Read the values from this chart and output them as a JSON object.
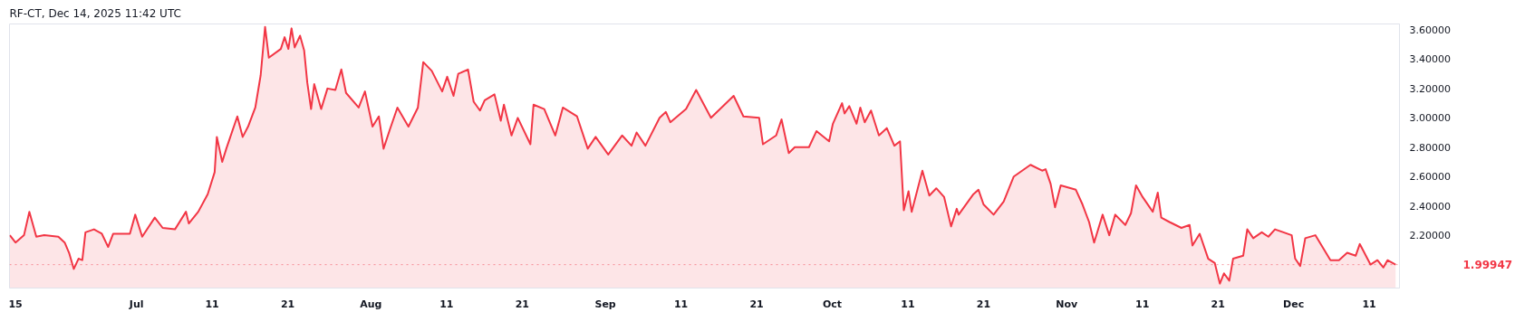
{
  "chart_data": {
    "type": "area",
    "title": "RF-CT, Dec 14, 2025 11:42 UTC",
    "x": [
      "2025-06-14T06:00",
      "2025-06-15T00:00",
      "2025-06-16T03:00",
      "2025-06-16T20:00",
      "2025-06-17T18:00",
      "2025-06-18T19:00",
      "2025-06-20T16:00",
      "2025-06-21T12:00",
      "2025-06-22T02:00",
      "2025-06-22T17:00",
      "2025-06-23T08:00",
      "2025-06-23T20:00",
      "2025-06-24T06:00",
      "2025-06-25T09:00",
      "2025-06-26T10:00",
      "2025-06-27T06:00",
      "2025-06-27T22:00",
      "2025-06-30T03:00",
      "2025-06-30T20:00",
      "2025-07-01T18:00",
      "2025-07-03T10:00",
      "2025-07-04T11:00",
      "2025-07-06T02:00",
      "2025-07-07T13:00",
      "2025-07-07T22:00",
      "2025-07-09T04:00",
      "2025-07-10T10:00",
      "2025-07-11T08:00",
      "2025-07-11T15:00",
      "2025-07-12T08:00",
      "2025-07-12T21:00",
      "2025-07-14T08:00",
      "2025-07-15T01:00",
      "2025-07-15T18:00",
      "2025-07-16T17:00",
      "2025-07-17T10:00",
      "2025-07-18T00:00",
      "2025-07-18T12:00",
      "2025-07-20T02:00",
      "2025-07-20T14:00",
      "2025-07-21T02:00",
      "2025-07-21T12:00",
      "2025-07-21T22:00",
      "2025-07-22T15:00",
      "2025-07-23T04:00",
      "2025-07-23T14:00",
      "2025-07-24T02:00",
      "2025-07-24T12:00",
      "2025-07-25T10:00",
      "2025-07-26T06:00",
      "2025-07-27T07:00",
      "2025-07-28T02:00",
      "2025-07-28T17:00",
      "2025-07-30T09:00",
      "2025-07-31T05:00",
      "2025-08-01T05:00",
      "2025-08-02T01:00",
      "2025-08-02T16:00",
      "2025-08-03T12:00",
      "2025-08-04T12:00",
      "2025-08-05T23:00",
      "2025-08-07T05:00",
      "2025-08-07T22:00",
      "2025-08-09T01:00",
      "2025-08-10T10:00",
      "2025-08-11T02:00",
      "2025-08-11T22:00",
      "2025-08-12T13:00",
      "2025-08-13T20:00",
      "2025-08-14T14:00",
      "2025-08-15T10:00",
      "2025-08-16T01:00",
      "2025-08-17T08:00",
      "2025-08-18T04:00",
      "2025-08-18T14:00",
      "2025-08-19T14:00",
      "2025-08-20T10:00",
      "2025-08-22T02:00",
      "2025-08-22T12:00",
      "2025-08-23T22:00",
      "2025-08-25T09:00",
      "2025-08-26T09:00",
      "2025-08-28T06:00",
      "2025-08-29T16:00",
      "2025-08-30T17:00",
      "2025-09-01T09:00",
      "2025-09-03T05:00",
      "2025-09-04T11:00",
      "2025-09-05T03:00",
      "2025-09-06T07:00",
      "2025-09-08T04:00",
      "2025-09-09T00:00",
      "2025-09-09T14:00",
      "2025-09-11T16:00",
      "2025-09-13T00:00",
      "2025-09-14T23:00",
      "2025-09-16T04:00",
      "2025-09-17T23:00",
      "2025-09-19T06:00",
      "2025-09-21T08:00",
      "2025-09-21T20:00",
      "2025-09-23T14:00",
      "2025-09-24T07:00",
      "2025-09-25T06:00",
      "2025-09-26T01:00",
      "2025-09-27T22:00",
      "2025-09-28T22:00",
      "2025-09-30T14:00",
      "2025-10-01T02:00",
      "2025-10-02T07:00",
      "2025-10-02T15:00",
      "2025-10-03T06:00",
      "2025-10-04T05:00",
      "2025-10-04T17:00",
      "2025-10-05T07:00",
      "2025-10-06T03:00",
      "2025-10-07T04:00",
      "2025-10-08T05:00",
      "2025-10-09T05:00",
      "2025-10-09T23:00",
      "2025-10-10T11:00",
      "2025-10-11T02:00",
      "2025-10-11T12:00",
      "2025-10-12T22:00",
      "2025-10-13T20:00",
      "2025-10-14T18:00",
      "2025-10-15T19:00",
      "2025-10-16T17:00",
      "2025-10-17T11:00",
      "2025-10-17T17:00",
      "2025-10-19T16:00",
      "2025-10-20T08:00",
      "2025-10-21T00:00",
      "2025-10-22T08:00",
      "2025-10-23T16:00",
      "2025-10-25T00:00",
      "2025-10-27T05:00",
      "2025-10-28T18:00",
      "2025-10-29T05:00",
      "2025-10-29T21:00",
      "2025-10-30T11:00",
      "2025-10-31T05:00",
      "2025-11-02T05:00",
      "2025-11-03T02:00",
      "2025-11-03T23:00",
      "2025-11-04T15:00",
      "2025-11-05T18:00",
      "2025-11-06T15:00",
      "2025-11-07T10:00",
      "2025-11-08T18:00",
      "2025-11-09T12:00",
      "2025-11-10T04:00",
      "2025-11-11T01:00",
      "2025-11-12T09:00",
      "2025-11-13T01:00",
      "2025-11-13T12:00",
      "2025-11-14T14:00",
      "2025-11-16T04:00",
      "2025-11-17T06:00",
      "2025-11-17T15:00",
      "2025-11-18T14:00",
      "2025-11-19T17:00",
      "2025-11-20T14:00",
      "2025-11-21T06:00",
      "2025-11-21T19:00",
      "2025-11-22T12:00",
      "2025-11-23T00:00",
      "2025-11-24T08:00",
      "2025-11-24T21:00",
      "2025-11-25T16:00",
      "2025-11-26T19:00",
      "2025-11-27T16:00",
      "2025-11-28T13:00",
      "2025-11-30T18:00",
      "2025-12-01T05:00",
      "2025-12-01T21:00",
      "2025-12-02T13:00",
      "2025-12-03T21:00",
      "2025-12-05T21:00",
      "2025-12-07T00:00",
      "2025-12-08T02:00",
      "2025-12-09T05:00",
      "2025-12-09T18:00",
      "2025-12-11T04:00",
      "2025-12-12T02:00",
      "2025-12-12T21:00",
      "2025-12-13T10:00",
      "2025-12-14T11:42"
    ],
    "series": [
      {
        "color": "#f23645",
        "values": [
          2.2,
          2.15,
          2.2,
          2.36,
          2.19,
          2.2,
          2.19,
          2.15,
          2.08,
          1.97,
          2.04,
          2.03,
          2.22,
          2.24,
          2.21,
          2.12,
          2.21,
          2.21,
          2.34,
          2.19,
          2.32,
          2.25,
          2.24,
          2.36,
          2.28,
          2.36,
          2.48,
          2.63,
          2.87,
          2.7,
          2.79,
          3.01,
          2.87,
          2.94,
          3.07,
          3.29,
          3.62,
          3.41,
          3.47,
          3.55,
          3.47,
          3.61,
          3.48,
          3.56,
          3.46,
          3.24,
          3.06,
          3.23,
          3.06,
          3.2,
          3.19,
          3.33,
          3.17,
          3.07,
          3.18,
          2.94,
          3.01,
          2.79,
          2.92,
          3.07,
          2.94,
          3.07,
          3.38,
          3.32,
          3.18,
          3.28,
          3.15,
          3.3,
          3.33,
          3.11,
          3.05,
          3.12,
          3.16,
          2.98,
          3.09,
          2.88,
          3.0,
          2.82,
          3.09,
          3.06,
          2.88,
          3.07,
          3.01,
          2.79,
          2.87,
          2.75,
          2.88,
          2.81,
          2.9,
          2.81,
          3.0,
          3.04,
          2.97,
          3.06,
          3.19,
          3.0,
          3.06,
          3.15,
          3.01,
          3.0,
          2.82,
          2.88,
          2.99,
          2.76,
          2.8,
          2.8,
          2.91,
          2.84,
          2.96,
          3.1,
          3.03,
          3.08,
          2.96,
          3.07,
          2.97,
          3.05,
          2.88,
          2.93,
          2.81,
          2.84,
          2.37,
          2.5,
          2.36,
          2.64,
          2.47,
          2.52,
          2.46,
          2.26,
          2.38,
          2.34,
          2.48,
          2.51,
          2.41,
          2.34,
          2.43,
          2.6,
          2.68,
          2.64,
          2.65,
          2.55,
          2.39,
          2.54,
          2.51,
          2.41,
          2.29,
          2.15,
          2.34,
          2.2,
          2.34,
          2.27,
          2.35,
          2.54,
          2.46,
          2.36,
          2.49,
          2.32,
          2.29,
          2.25,
          2.27,
          2.13,
          2.21,
          2.04,
          2.01,
          1.87,
          1.94,
          1.89,
          2.04,
          2.06,
          2.24,
          2.18,
          2.22,
          2.19,
          2.24,
          2.2,
          2.04,
          1.99,
          2.18,
          2.2,
          2.03,
          2.03,
          2.08,
          2.06,
          2.14,
          2.0,
          2.03,
          1.98,
          2.03,
          2.0
        ]
      }
    ],
    "xlim": [
      "2025-06-14T05:00",
      "2025-12-15T00:00"
    ],
    "xticks": [
      {
        "value": "2025-06-15",
        "label": "15"
      },
      {
        "value": "2025-07-01",
        "label": "Jul"
      },
      {
        "value": "2025-07-11",
        "label": "11"
      },
      {
        "value": "2025-07-21",
        "label": "21"
      },
      {
        "value": "2025-08-01",
        "label": "Aug"
      },
      {
        "value": "2025-08-11",
        "label": "11"
      },
      {
        "value": "2025-08-21",
        "label": "21"
      },
      {
        "value": "2025-09-01",
        "label": "Sep"
      },
      {
        "value": "2025-09-11",
        "label": "11"
      },
      {
        "value": "2025-09-21",
        "label": "21"
      },
      {
        "value": "2025-10-01",
        "label": "Oct"
      },
      {
        "value": "2025-10-11",
        "label": "11"
      },
      {
        "value": "2025-10-21",
        "label": "21"
      },
      {
        "value": "2025-11-01",
        "label": "Nov"
      },
      {
        "value": "2025-11-11",
        "label": "11"
      },
      {
        "value": "2025-11-21",
        "label": "21"
      },
      {
        "value": "2025-12-01",
        "label": "Dec"
      },
      {
        "value": "2025-12-11",
        "label": "11"
      }
    ],
    "ylim": [
      1.84,
      3.64
    ],
    "yticks": [
      {
        "value": 2.2,
        "label": "2.20000"
      },
      {
        "value": 2.4,
        "label": "2.40000"
      },
      {
        "value": 2.6,
        "label": "2.60000"
      },
      {
        "value": 2.8,
        "label": "2.80000"
      },
      {
        "value": 3.0,
        "label": "3.00000"
      },
      {
        "value": 3.2,
        "label": "3.20000"
      },
      {
        "value": 3.4,
        "label": "3.40000"
      },
      {
        "value": 3.6,
        "label": "3.60000"
      }
    ],
    "ref_lines": [
      {
        "axis": "y",
        "value": 1.99947,
        "label": "1.99947",
        "color": "#f23645",
        "line_style": "dotted"
      }
    ]
  }
}
